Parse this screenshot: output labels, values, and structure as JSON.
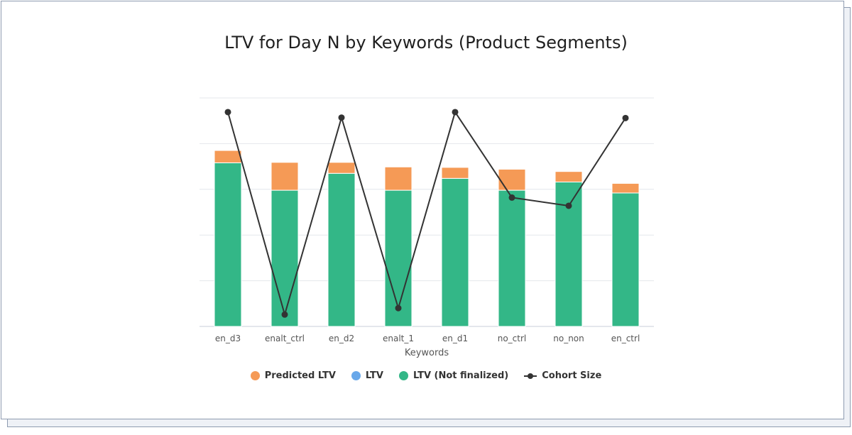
{
  "chart_data": {
    "type": "bar",
    "title": "LTV for Day N by Keywords (Product Segments)",
    "xlabel": "Keywords",
    "ylabel": "",
    "categories": [
      "en_d3",
      "enalt_ctrl",
      "en_d2",
      "enalt_1",
      "en_d1",
      "no_ctrl",
      "no_non",
      "en_ctrl"
    ],
    "ylim": [
      0,
      5
    ],
    "y2lim": [
      0,
      5
    ],
    "grid": true,
    "stacked": true,
    "legend_position": "bottom",
    "series": [
      {
        "name": "LTV (Not finalized)",
        "kind": "bar",
        "color": "#33b787",
        "values": [
          3.58,
          2.98,
          3.35,
          2.98,
          3.24,
          2.98,
          3.16,
          2.92
        ]
      },
      {
        "name": "Predicted LTV",
        "kind": "bar",
        "color": "#f59a56",
        "values": [
          0.27,
          0.61,
          0.24,
          0.51,
          0.24,
          0.46,
          0.23,
          0.21
        ]
      },
      {
        "name": "LTV",
        "kind": "bar",
        "color": "#68a8ea",
        "values": [
          0,
          0,
          0,
          0,
          0,
          0,
          0,
          0
        ]
      },
      {
        "name": "Cohort Size",
        "kind": "line",
        "color": "#333333",
        "axis": "secondary",
        "values": [
          4.69,
          0.26,
          4.57,
          0.4,
          4.69,
          2.82,
          2.64,
          4.56
        ]
      }
    ]
  },
  "legend": [
    {
      "label": "Predicted LTV",
      "color": "#f59a56",
      "marker": "dot"
    },
    {
      "label": "LTV",
      "color": "#68a8ea",
      "marker": "dot"
    },
    {
      "label": "LTV (Not finalized)",
      "color": "#33b787",
      "marker": "dot"
    },
    {
      "label": "Cohort Size",
      "color": "#333333",
      "marker": "line"
    }
  ]
}
